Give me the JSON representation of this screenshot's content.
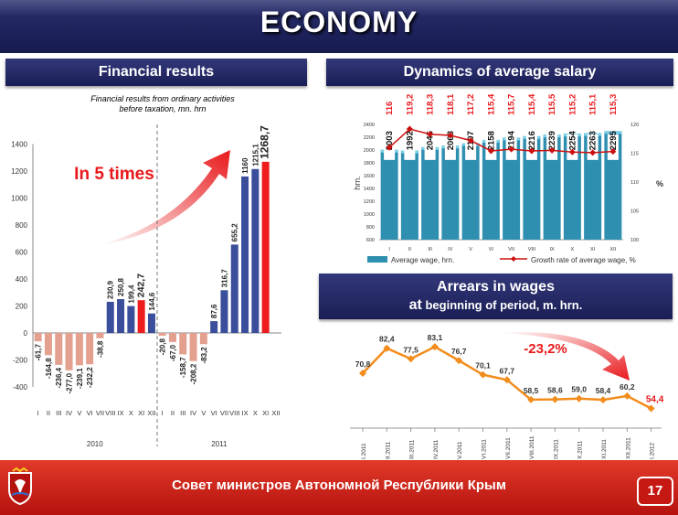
{
  "header": {
    "title": "ECONOMY"
  },
  "sections": {
    "financial": "Financial results",
    "salary": "Dynamics of average salary",
    "arrears_title": "Arrears in wages",
    "arrears_sub_at": "at",
    "arrears_sub_rest": "beginning of period, m. hrn."
  },
  "footer": {
    "text": "Совет министров Автономной Республики Крым",
    "page": "17"
  },
  "colors": {
    "navy": "#1a1e55",
    "red_footer": "#c61812",
    "bar_blue": "#3b4e9c",
    "bar_neg": "#e4a08f",
    "bar_red": "#ee1c1c",
    "teal": "#2e8fb0",
    "arrears_line": "#f28c1c"
  },
  "chart_data": [
    {
      "type": "bar",
      "title": "Financial results from ordinary activities before taxation, mn. hrn",
      "annotation": "In 5 times",
      "ylim": [
        -400,
        1400
      ],
      "yticks": [
        "1400",
        "1200",
        "1000",
        "800",
        "600",
        "400",
        "200",
        "0",
        "-200",
        "-400"
      ],
      "groups": [
        {
          "label": "2010",
          "categories": [
            "I",
            "II",
            "III",
            "IV",
            "V",
            "VI",
            "VII",
            "VIII",
            "IX",
            "X",
            "XI",
            "XII"
          ],
          "values": [
            -61.7,
            -164.8,
            -236.4,
            -277.0,
            -239.1,
            -232.2,
            -38.8,
            230.9,
            250.8,
            199.4,
            242.7,
            144.6
          ],
          "labels": [
            "-61,7",
            "-164,8",
            "-236,4",
            "-277,0",
            "-239,1",
            "-232,2",
            "-38,8",
            "230,9",
            "250,8",
            "199,4",
            "242,7",
            "144,6"
          ]
        },
        {
          "label": "2011",
          "categories": [
            "I",
            "II",
            "III",
            "IV",
            "V",
            "VI",
            "VII",
            "VIII",
            "IX",
            "X",
            "XI",
            "XII"
          ],
          "values": [
            -20.8,
            -67.0,
            -158.7,
            -208.2,
            -83.2,
            87.6,
            316.7,
            655.2,
            1160,
            1215.1,
            1268.7
          ],
          "labels": [
            "-20,8",
            "-67,0",
            "-158,7",
            "-208,2",
            "-83,2",
            "87,6",
            "316,7",
            "655,2",
            "1160",
            "1215,1",
            "1268,7"
          ]
        }
      ]
    },
    {
      "type": "bar",
      "categories": [
        "I",
        "II",
        "III",
        "IV",
        "V",
        "VI",
        "VII",
        "VIII",
        "IX",
        "X",
        "XI",
        "XII"
      ],
      "series": [
        {
          "name": "Average wage, hrn.",
          "values": [
            2003,
            1992,
            2045,
            2068,
            2107,
            2158,
            2194,
            2216,
            2239,
            2254,
            2263,
            2295
          ],
          "labels": [
            "2003",
            "1992",
            "2045",
            "2068",
            "2107",
            "2158",
            "2194",
            "2216",
            "2239",
            "2254",
            "2263",
            "2295"
          ]
        },
        {
          "name": "Growth rate of average wage, %",
          "values": [
            116,
            119.2,
            118.3,
            118.1,
            117.2,
            115.4,
            115.7,
            115.4,
            115.5,
            115.2,
            115.1,
            115.3
          ],
          "labels": [
            "116",
            "119,2",
            "118,3",
            "118,1",
            "117,2",
            "115,4",
            "115,7",
            "115,4",
            "115,5",
            "115,2",
            "115,1",
            "115,3"
          ]
        }
      ],
      "ylabel": "hrn.",
      "y2label": "%",
      "ylim": [
        600,
        2400
      ],
      "y2lim": [
        100,
        120
      ],
      "yticks": [
        "2400",
        "2200",
        "2000",
        "1800",
        "1600",
        "1400",
        "1200",
        "1000",
        "800",
        "600"
      ],
      "y2ticks": [
        "120",
        "115",
        "110",
        "105",
        "100"
      ],
      "legend": "bottom"
    },
    {
      "type": "line",
      "categories": [
        "I.2011",
        "II.2011",
        "III.2011",
        "IV.2011",
        "V.2011",
        "VI.2011",
        "VII.2011",
        "VIII.2011",
        "IX.2011",
        "X.2011",
        "XI.2011",
        "XII.2011",
        "I.2012"
      ],
      "values": [
        70.8,
        82.4,
        77.5,
        83.1,
        76.7,
        70.1,
        67.7,
        58.5,
        58.6,
        59.0,
        58.4,
        60.2,
        54.4
      ],
      "labels": [
        "70,8",
        "82,4",
        "77,5",
        "83,1",
        "76,7",
        "70,1",
        "67,7",
        "58,5",
        "58,6",
        "59,0",
        "58,4",
        "60,2",
        "54,4"
      ],
      "annotation": "-23,2%"
    }
  ]
}
